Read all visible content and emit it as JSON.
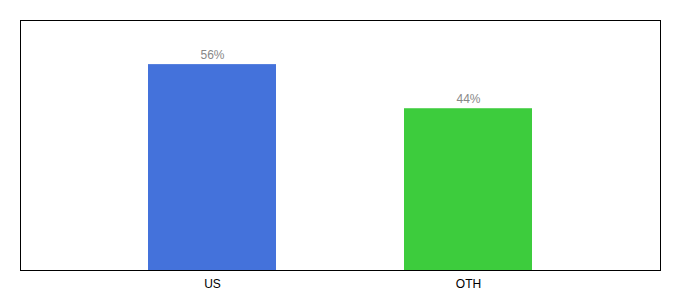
{
  "chart_data": {
    "type": "bar",
    "categories": [
      "US",
      "OTH"
    ],
    "values": [
      56,
      44
    ],
    "colors": [
      "#4472db",
      "#3dcc3d"
    ],
    "ylim": [
      0,
      68
    ],
    "yticks": [],
    "data_labels": true,
    "value_labels": [
      "56%",
      "44%"
    ],
    "tick_labels": "x",
    "grid": false
  }
}
